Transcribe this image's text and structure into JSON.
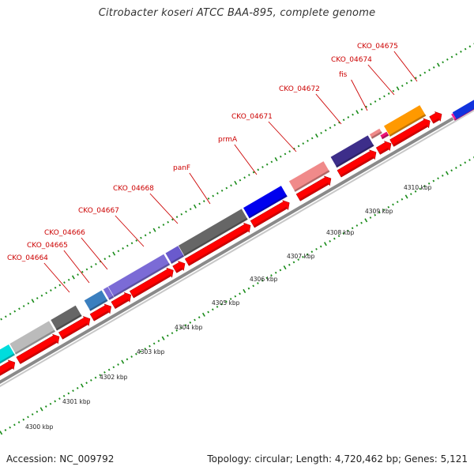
{
  "title": "Citrobacter koseri ATCC BAA-895, complete genome",
  "footer": {
    "accession": "Accession: NC_009792",
    "summary": "Topology: circular; Length: 4,720,462 bp; Genes: 5,121"
  },
  "colors": {
    "cds_arrow": "#ff0000",
    "tick": "#1a8c1a",
    "backbone": "#909090",
    "label": "#cc0000"
  },
  "scale_ticks": [
    "4300 kbp",
    "4301 kbp",
    "4302 kbp",
    "4303 kbp",
    "4304 kbp",
    "4305 kbp",
    "4306 kbp",
    "4307 kbp",
    "4308 kbp",
    "4309 kbp",
    "4310 kbp"
  ],
  "gene_labels": [
    "CKO_04664",
    "CKO_04665",
    "CKO_04666",
    "CKO_04667",
    "CKO_04668",
    "panF",
    "prmA",
    "CKO_04671",
    "CKO_04672",
    "fis",
    "CKO_04674",
    "CKO_04675"
  ],
  "feature_colors": [
    "#00dddd",
    "#bbbbbb",
    "#666666",
    "#3b7fbf",
    "#7b6bd6",
    "#7b6bd6",
    "#6a5acd",
    "#666666",
    "#0000ee",
    "#f08a8a",
    "#3d2e8a",
    "#f08a8a",
    "#ee1177",
    "#ff9900",
    "#ee2299",
    "#1133dd"
  ]
}
